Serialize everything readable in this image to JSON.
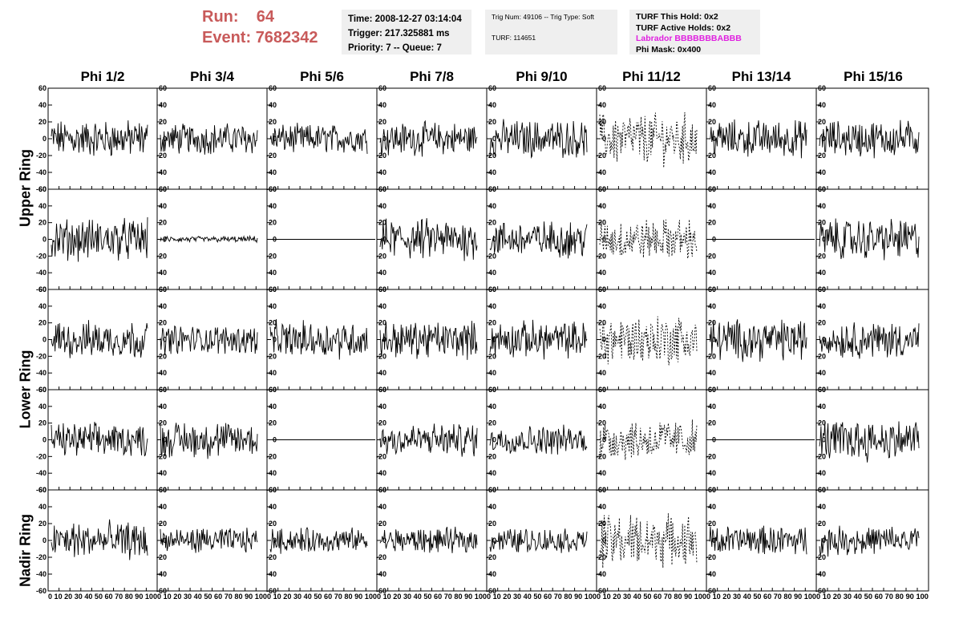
{
  "header": {
    "run_label": "Run:",
    "run_value": "64",
    "event_label": "Event:",
    "event_value": "7682342"
  },
  "info_time": {
    "time": "Time: 2008-12-27 03:14:04",
    "trigger": "Trigger: 217.325881 ms",
    "priority": "Priority: 7 -- Queue: 7"
  },
  "info_trig": {
    "trig": "Trig Num: 49106 -- Trig Type: Soft",
    "turf": "TURF: 114651"
  },
  "info_turf": {
    "this_hold": "TURF This Hold: 0x2",
    "active_holds": "TURF Active Holds: 0x2",
    "labrador": "Labrador BBBBBBBABBB",
    "phi_mask": "Phi Mask: 0x400"
  },
  "colors": {
    "run_text": "#c85a5a",
    "labrador": "#e020e0",
    "panel_bg": "#efefef"
  },
  "chart_data": {
    "type": "line",
    "columns": [
      "Phi 1/2",
      "Phi 3/4",
      "Phi 5/6",
      "Phi 7/8",
      "Phi 9/10",
      "Phi 11/12",
      "Phi 13/14",
      "Phi 15/16"
    ],
    "rows": [
      "Upper Ring",
      "Lower Ring",
      "Nadir Ring"
    ],
    "ylim": [
      -60,
      60
    ],
    "yticks": [
      "60",
      "40",
      "20",
      "0",
      "-20",
      "-40",
      "-60"
    ],
    "xlim": [
      0,
      100
    ],
    "xticks": [
      "0",
      "10",
      "20",
      "30",
      "40",
      "50",
      "60",
      "70",
      "80",
      "90",
      "100"
    ],
    "x_tick_label": "0 10 20 30 40 50 60 70 80 90 100",
    "panels": [
      [
        18,
        15,
        14,
        16,
        18,
        25,
        18,
        18
      ],
      [
        20,
        3,
        0,
        20,
        18,
        20,
        0,
        20
      ],
      [
        18,
        14,
        18,
        18,
        18,
        25,
        20,
        18
      ],
      [
        16,
        18,
        0,
        16,
        14,
        20,
        0,
        20
      ],
      [
        18,
        12,
        12,
        12,
        12,
        25,
        14,
        14
      ]
    ],
    "dashed_column": 5
  }
}
